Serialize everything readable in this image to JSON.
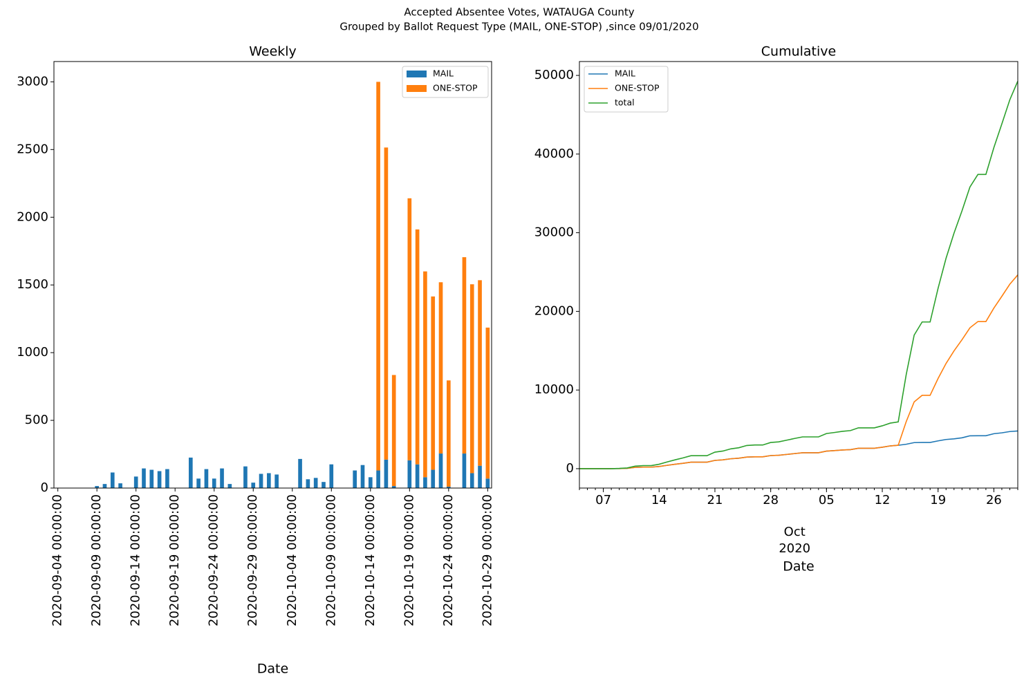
{
  "title": "Accepted Absentee Votes, WATAUGA County",
  "subtitle": "Grouped by Ballot Request Type (MAIL, ONE-STOP) ,since 09/01/2020",
  "chart_data": [
    {
      "type": "bar",
      "stacked": true,
      "title": "Weekly",
      "x_label": "Date",
      "categories": [
        "2020-09-04 00:00:00",
        null,
        null,
        null,
        null,
        "2020-09-09 00:00:00",
        null,
        null,
        null,
        null,
        "2020-09-14 00:00:00",
        null,
        null,
        null,
        null,
        "2020-09-19 00:00:00",
        null,
        null,
        null,
        null,
        "2020-09-24 00:00:00",
        null,
        null,
        null,
        null,
        "2020-09-29 00:00:00",
        null,
        null,
        null,
        null,
        "2020-10-04 00:00:00",
        null,
        null,
        null,
        null,
        "2020-10-09 00:00:00",
        null,
        null,
        null,
        null,
        "2020-10-14 00:00:00",
        null,
        null,
        null,
        null,
        "2020-10-19 00:00:00",
        null,
        null,
        null,
        null,
        "2020-10-24 00:00:00",
        null,
        null,
        null,
        null,
        "2020-10-29 00:00:00"
      ],
      "series": [
        {
          "name": "MAIL",
          "color": "#1f77b4",
          "values": [
            0,
            0,
            0,
            0,
            0,
            15,
            30,
            115,
            35,
            0,
            85,
            145,
            135,
            125,
            140,
            0,
            0,
            225,
            70,
            140,
            70,
            145,
            30,
            0,
            160,
            40,
            105,
            110,
            100,
            0,
            0,
            215,
            65,
            75,
            45,
            175,
            0,
            0,
            130,
            170,
            80,
            130,
            210,
            15,
            0,
            205,
            175,
            80,
            135,
            255,
            10,
            0,
            255,
            110,
            165,
            70
          ]
        },
        {
          "name": "ONE-STOP",
          "color": "#ff7f0e",
          "values": [
            0,
            0,
            0,
            0,
            0,
            0,
            0,
            0,
            0,
            0,
            0,
            0,
            0,
            0,
            0,
            0,
            0,
            0,
            0,
            0,
            0,
            0,
            0,
            0,
            0,
            0,
            0,
            0,
            0,
            0,
            0,
            0,
            0,
            0,
            0,
            0,
            0,
            0,
            0,
            0,
            0,
            2870,
            2305,
            820,
            0,
            1935,
            1735,
            1520,
            1280,
            1265,
            785,
            0,
            1450,
            1395,
            1370,
            1115
          ]
        }
      ],
      "ylim": [
        0,
        3150
      ],
      "yticks": [
        0,
        500,
        1000,
        1500,
        2000,
        2500,
        3000
      ],
      "legend": "upper right"
    },
    {
      "type": "line",
      "title": "Cumulative",
      "x_label": "Date",
      "x": [
        "2020-09-04",
        "2020-09-05",
        "2020-09-06",
        "2020-09-07",
        "2020-09-08",
        "2020-09-09",
        "2020-09-10",
        "2020-09-11",
        "2020-09-12",
        "2020-09-13",
        "2020-09-14",
        "2020-09-15",
        "2020-09-16",
        "2020-09-17",
        "2020-09-18",
        "2020-09-19",
        "2020-09-20",
        "2020-09-21",
        "2020-09-22",
        "2020-09-23",
        "2020-09-24",
        "2020-09-25",
        "2020-09-26",
        "2020-09-27",
        "2020-09-28",
        "2020-09-29",
        "2020-09-30",
        "2020-10-01",
        "2020-10-02",
        "2020-10-03",
        "2020-10-04",
        "2020-10-05",
        "2020-10-06",
        "2020-10-07",
        "2020-10-08",
        "2020-10-09",
        "2020-10-10",
        "2020-10-11",
        "2020-10-12",
        "2020-10-13",
        "2020-10-14",
        "2020-10-15",
        "2020-10-16",
        "2020-10-17",
        "2020-10-18",
        "2020-10-19",
        "2020-10-20",
        "2020-10-21",
        "2020-10-22",
        "2020-10-23",
        "2020-10-24",
        "2020-10-25",
        "2020-10-26",
        "2020-10-27",
        "2020-10-28",
        "2020-10-29"
      ],
      "series": [
        {
          "name": "MAIL",
          "color": "#1f77b4",
          "values": [
            0,
            0,
            0,
            0,
            0,
            15,
            45,
            160,
            195,
            195,
            280,
            425,
            560,
            685,
            825,
            825,
            825,
            1050,
            1120,
            1260,
            1330,
            1475,
            1505,
            1505,
            1665,
            1705,
            1810,
            1920,
            2020,
            2020,
            2020,
            2235,
            2300,
            2375,
            2420,
            2595,
            2595,
            2595,
            2725,
            2895,
            2975,
            3105,
            3315,
            3330,
            3330,
            3535,
            3710,
            3790,
            3925,
            4180,
            4190,
            4190,
            4445,
            4555,
            4720,
            4790
          ]
        },
        {
          "name": "ONE-STOP",
          "color": "#ff7f0e",
          "values": [
            0,
            0,
            0,
            0,
            0,
            15,
            45,
            160,
            195,
            195,
            280,
            425,
            560,
            685,
            825,
            825,
            825,
            1050,
            1120,
            1260,
            1330,
            1475,
            1505,
            1505,
            1665,
            1705,
            1810,
            1920,
            2020,
            2020,
            2020,
            2235,
            2300,
            2375,
            2420,
            2595,
            2595,
            2595,
            2725,
            2895,
            2975,
            5975,
            8490,
            9325,
            9325,
            11465,
            13375,
            14975,
            16390,
            17910,
            18705,
            18705,
            20410,
            21915,
            23450,
            24635
          ]
        },
        {
          "name": "total",
          "color": "#2ca02c",
          "values": [
            0,
            0,
            0,
            0,
            0,
            30,
            90,
            320,
            390,
            390,
            560,
            850,
            1120,
            1370,
            1650,
            1650,
            1650,
            2100,
            2240,
            2520,
            2660,
            2950,
            3010,
            3010,
            3330,
            3410,
            3620,
            3840,
            4040,
            4040,
            4040,
            4470,
            4600,
            4750,
            4840,
            5190,
            5190,
            5190,
            5450,
            5790,
            5950,
            11950,
            16980,
            18650,
            18650,
            22930,
            26750,
            29950,
            32780,
            35820,
            37410,
            37410,
            40820,
            43830,
            46900,
            49270
          ]
        }
      ],
      "xlim": [
        "2020-09-04",
        "2020-10-29"
      ],
      "xticks": [
        {
          "value": "2020-09-07",
          "label": "07"
        },
        {
          "value": "2020-09-14",
          "label": "14"
        },
        {
          "value": "2020-09-21",
          "label": "21"
        },
        {
          "value": "2020-09-28",
          "label": "28"
        },
        {
          "value": "2020-10-05",
          "label": "05"
        },
        {
          "value": "2020-10-12",
          "label": "12"
        },
        {
          "value": "2020-10-19",
          "label": "19"
        },
        {
          "value": "2020-10-26",
          "label": "26"
        }
      ],
      "month_tick": {
        "value": "2020-10-01",
        "label": "Oct",
        "year": "2020"
      },
      "ylim": [
        -2465,
        51765
      ],
      "yticks": [
        0,
        10000,
        20000,
        30000,
        40000,
        50000
      ],
      "legend": "upper left"
    }
  ]
}
